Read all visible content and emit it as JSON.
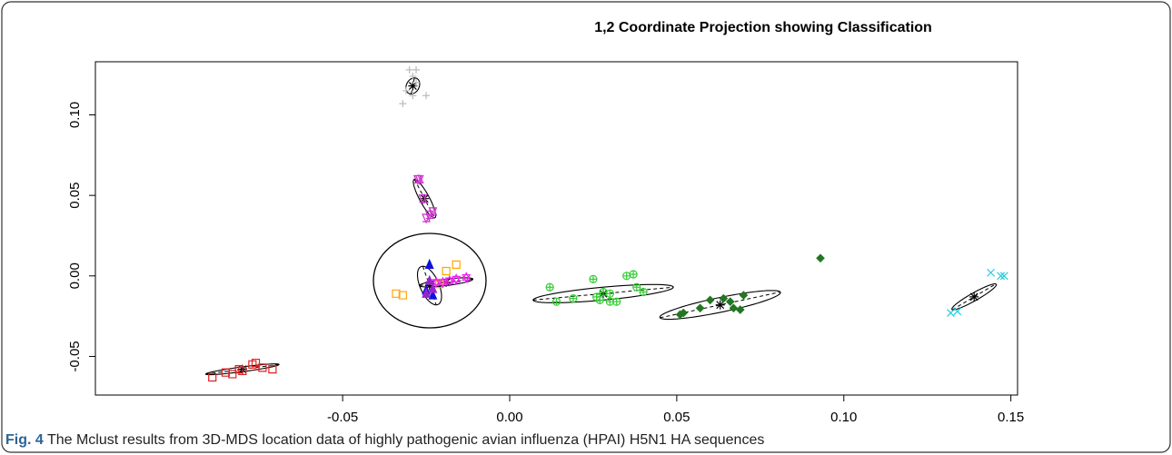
{
  "chart_data": {
    "type": "scatter",
    "title": "1,2 Coordinate Projection showing Classification",
    "caption": {
      "label": "Fig. 4",
      "text": "The Mclust results from 3D-MDS location data of highly pathogenic avian influenza (HPAI) H5N1 HA sequences"
    },
    "xlim": [
      -0.124,
      0.152
    ],
    "ylim": [
      -0.074,
      0.133
    ],
    "xticks": [
      -0.05,
      {
        "value": 0,
        "label": "0.00"
      },
      0.05,
      {
        "value": 0.1,
        "label": "0.10"
      },
      0.15
    ],
    "yticks": [
      -0.05,
      {
        "value": 0,
        "label": "0.00"
      },
      0.05,
      {
        "value": 0.1,
        "label": "0.10"
      }
    ],
    "series": [
      {
        "color": "#bbbbbb",
        "marker": "plus",
        "x": [
          -0.03,
          -0.028,
          -0.029,
          -0.031,
          -0.029,
          -0.025,
          -0.032,
          -0.028
        ],
        "values": [
          0.128,
          0.128,
          0.124,
          0.115,
          0.112,
          0.112,
          0.107,
          0.12
        ]
      },
      {
        "color": "#cc33cc",
        "marker": "triangle-down",
        "x": [
          -0.0275,
          -0.027,
          -0.026,
          -0.023,
          -0.024,
          -0.025
        ],
        "values": [
          0.06,
          0.06,
          0.048,
          0.04,
          0.038,
          0.036
        ]
      },
      {
        "color": "#dd2222",
        "marker": "square",
        "x": [
          -0.089,
          -0.085,
          -0.083,
          -0.08,
          -0.077,
          -0.076,
          -0.074,
          -0.071,
          -0.081
        ],
        "values": [
          -0.063,
          -0.06,
          -0.061,
          -0.059,
          -0.055,
          -0.054,
          -0.057,
          -0.058,
          -0.058
        ]
      },
      {
        "color": "#33cc33",
        "marker": "circle-plus",
        "x": [
          0.012,
          0.014,
          0.019,
          0.025,
          0.026,
          0.028,
          0.03,
          0.032,
          0.035,
          0.037,
          0.038,
          0.04,
          0.03,
          0.027
        ],
        "values": [
          -0.007,
          -0.016,
          -0.014,
          -0.002,
          -0.013,
          -0.01,
          -0.011,
          -0.016,
          0.0,
          0.001,
          -0.007,
          -0.01,
          -0.016,
          -0.015
        ]
      },
      {
        "color": "#227722",
        "marker": "diamond",
        "x": [
          0.051,
          0.052,
          0.057,
          0.06,
          0.064,
          0.066,
          0.067,
          0.069,
          0.07,
          0.093
        ],
        "values": [
          -0.024,
          -0.023,
          -0.02,
          -0.015,
          -0.014,
          -0.016,
          -0.02,
          -0.021,
          -0.012,
          0.011
        ]
      },
      {
        "color": "#22ccdd",
        "marker": "x",
        "x": [
          0.132,
          0.134,
          0.144,
          0.147,
          0.148
        ],
        "values": [
          -0.023,
          -0.022,
          0.002,
          0.0,
          0.0
        ]
      },
      {
        "color": "#1111dd",
        "marker": "triangle",
        "x": [
          -0.024,
          -0.025,
          -0.023
        ],
        "values": [
          0.007,
          -0.009,
          -0.012
        ]
      },
      {
        "color": "#ffa500",
        "marker": "square",
        "x": [
          -0.016,
          -0.019,
          -0.034,
          -0.032,
          -0.021
        ],
        "values": [
          0.007,
          0.003,
          -0.011,
          -0.012,
          -0.005
        ]
      },
      {
        "color": "#ee22ee",
        "marker": "star",
        "x": [
          -0.013,
          -0.016,
          -0.018,
          -0.02,
          -0.022
        ],
        "values": [
          -0.001,
          -0.002,
          -0.003,
          -0.004,
          -0.004
        ]
      },
      {
        "color": "#9922cc",
        "marker": "triangle",
        "x": [
          -0.024,
          -0.023,
          -0.025
        ],
        "values": [
          -0.003,
          -0.008,
          -0.011
        ]
      }
    ],
    "components": [
      {
        "center": [
          -0.029,
          0.118
        ],
        "major": [
          0.0005,
          0.005
        ],
        "minor": [
          0.002,
          0
        ]
      },
      {
        "center": [
          -0.0255,
          0.048
        ],
        "major": [
          0.003,
          -0.012
        ],
        "minor": [
          0.0015,
          0.0005
        ]
      },
      {
        "center": [
          -0.08,
          -0.058
        ],
        "major": [
          0.011,
          0.003
        ],
        "minor": [
          0,
          0.0015
        ]
      },
      {
        "center": [
          0.028,
          -0.011
        ],
        "major": [
          0.021,
          0.004
        ],
        "minor": [
          0,
          0.004
        ]
      },
      {
        "center": [
          0.063,
          -0.018
        ],
        "major": [
          0.018,
          0.008
        ],
        "minor": [
          -0.0015,
          0.004
        ]
      },
      {
        "center": [
          0.139,
          -0.013
        ],
        "major": [
          0.0065,
          0.008
        ],
        "minor": [
          -0.0015,
          0.001
        ]
      },
      {
        "center": [
          -0.024,
          -0.006
        ],
        "major": [
          0.002,
          -0.012
        ],
        "minor": [
          0.003,
          0
        ]
      },
      {
        "center": [
          -0.019,
          -0.004
        ],
        "major": [
          0.008,
          0.002
        ],
        "minor": [
          0,
          0.002
        ]
      }
    ]
  }
}
